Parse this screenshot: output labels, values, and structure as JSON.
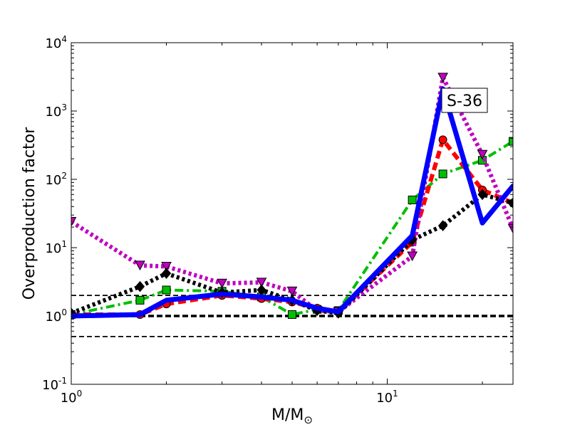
{
  "chart_data": {
    "type": "line",
    "xlabel": "M/M",
    "xlabel_subscript": "⊙",
    "ylabel": "Overproduction factor",
    "xscale": "log",
    "yscale": "log",
    "xlim": [
      1,
      25
    ],
    "ylim": [
      0.1,
      10000
    ],
    "x_ticks": [
      {
        "value": 1,
        "base": "10",
        "exp": "0"
      },
      {
        "value": 10,
        "base": "10",
        "exp": "1"
      }
    ],
    "y_ticks": [
      {
        "value": 0.1,
        "base": "10",
        "exp": "-1"
      },
      {
        "value": 1,
        "base": "10",
        "exp": "0"
      },
      {
        "value": 10,
        "base": "10",
        "exp": "1"
      },
      {
        "value": 100,
        "base": "10",
        "exp": "2"
      },
      {
        "value": 1000,
        "base": "10",
        "exp": "3"
      },
      {
        "value": 10000,
        "base": "10",
        "exp": "4"
      }
    ],
    "annotation": "S-36",
    "reference_lines": [
      {
        "y": 2,
        "style": "dashed-thin"
      },
      {
        "y": 1,
        "style": "dashed-thick"
      },
      {
        "y": 0.5,
        "style": "dashed-thin"
      }
    ],
    "series": [
      {
        "color": "#00bf00",
        "marker": "square",
        "line": "dashdot",
        "x": [
          1,
          1.65,
          2,
          3,
          4,
          5,
          6,
          7,
          12,
          15,
          20,
          25
        ],
        "y": [
          1.05,
          1.7,
          2.4,
          2.3,
          1.9,
          1.05,
          1.25,
          1.2,
          50,
          120,
          190,
          360
        ]
      },
      {
        "color": "#ff0000",
        "marker": "circle",
        "line": "dashed",
        "x": [
          1,
          1.65,
          2,
          3,
          4,
          5,
          6,
          7,
          12,
          15,
          20,
          25
        ],
        "y": [
          1.05,
          1.05,
          1.5,
          2.0,
          1.8,
          1.6,
          1.3,
          1.15,
          12,
          380,
          70,
          45
        ]
      },
      {
        "color": "#bf00bf",
        "marker": "triangle-down",
        "line": "dotted",
        "x": [
          1,
          1.65,
          2,
          3,
          4,
          5,
          6,
          7,
          12,
          15,
          20,
          25
        ],
        "y": [
          24,
          5.5,
          5.3,
          3.0,
          3.1,
          2.3,
          1.2,
          1.15,
          7.5,
          3100,
          230,
          19
        ]
      },
      {
        "color": "#000000",
        "marker": "diamond",
        "line": "dotted",
        "x": [
          1,
          1.65,
          2,
          3,
          4,
          5,
          6,
          7,
          12,
          15,
          20,
          25
        ],
        "y": [
          1.1,
          2.7,
          4.2,
          2.2,
          2.4,
          1.7,
          1.2,
          1.1,
          13,
          21,
          60,
          45
        ]
      },
      {
        "color": "#0000ff",
        "marker": "none",
        "line": "solid",
        "x": [
          1,
          1.65,
          2,
          3,
          4,
          5,
          6,
          7,
          12,
          15,
          20,
          25
        ],
        "y": [
          1.0,
          1.05,
          1.7,
          2.1,
          1.9,
          1.7,
          1.3,
          1.15,
          15,
          2100,
          23,
          80
        ]
      }
    ]
  }
}
